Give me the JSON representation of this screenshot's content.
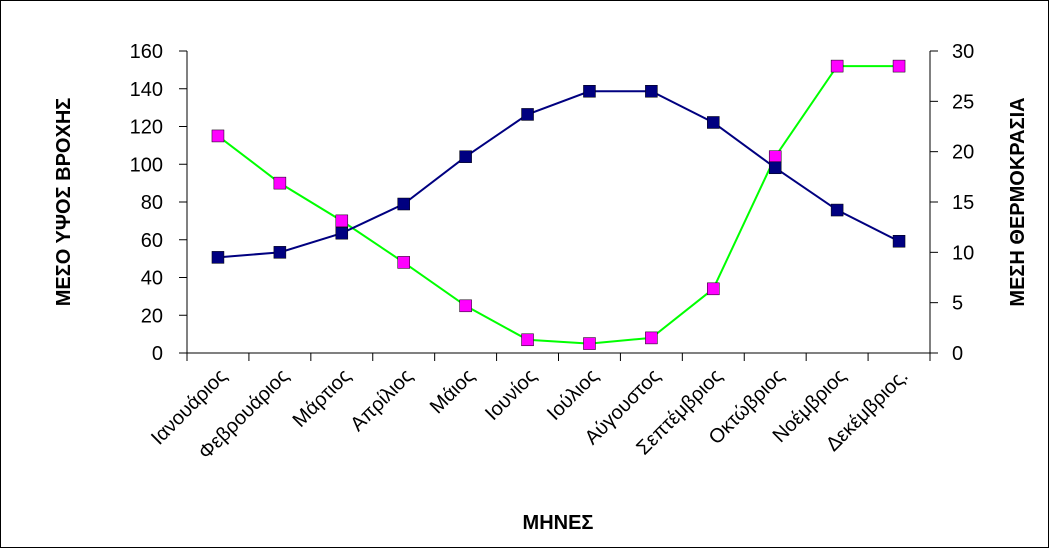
{
  "chart_data": {
    "type": "line",
    "xlabel": "ΜΗΝΕΣ",
    "ylabel": "ΜΕΣΟ ΥΨΟΣ ΒΡΟΧΗΣ",
    "y2label": "ΜΕΣΗ ΘΕΡΜΟΚΡΑΣΙΑ",
    "ylim": [
      0,
      160
    ],
    "yticks": [
      "0",
      "20",
      "40",
      "60",
      "80",
      "100",
      "120",
      "140",
      "160"
    ],
    "y2lim": [
      0,
      30
    ],
    "y2ticks": [
      "0",
      "5",
      "10",
      "15",
      "20",
      "25",
      "30"
    ],
    "grid": false,
    "categories": [
      "Ιανουάριος",
      "Φεβρουάριος",
      "Μάρτιος",
      "Απρίλιος",
      "Μάιος",
      "Ιουνίος",
      "Ιούλιος",
      "Αύγουστος",
      "Σεπτέμβριος",
      "Οκτώβριος",
      "Νοέμβριος",
      "Δεκέμβριος."
    ],
    "series": [
      {
        "axis": "left",
        "color": "#00FF00",
        "marker_color": "#FF00FF",
        "values": [
          115,
          90,
          70,
          48,
          25,
          7,
          5,
          8,
          34,
          104,
          152,
          152
        ]
      },
      {
        "axis": "right",
        "color": "#000080",
        "marker_color": "#000080",
        "values": [
          9.5,
          10,
          11.9,
          14.8,
          19.5,
          23.7,
          26,
          26,
          22.9,
          18.4,
          14.2,
          11.1
        ]
      }
    ]
  }
}
